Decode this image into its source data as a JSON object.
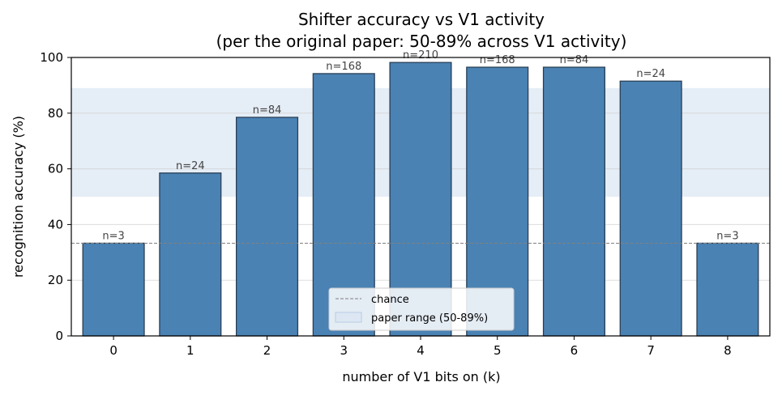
{
  "chart_data": {
    "type": "bar",
    "title": "Shifter accuracy vs V1 activity",
    "subtitle": "(per the original paper: 50-89% across V1 activity)",
    "xlabel": "number of V1 bits on (k)",
    "ylabel": "recognition accuracy (%)",
    "categories": [
      "0",
      "1",
      "2",
      "3",
      "4",
      "5",
      "6",
      "7",
      "8"
    ],
    "values": [
      33.3,
      58.5,
      78.5,
      94.2,
      98.2,
      96.5,
      96.5,
      91.5,
      33.3
    ],
    "bar_labels": [
      "n=3",
      "n=24",
      "n=84",
      "n=168",
      "n=210",
      "n=168",
      "n=84",
      "n=24",
      "n=3"
    ],
    "ylim": [
      0,
      100
    ],
    "yticks": [
      "0",
      "20",
      "40",
      "60",
      "80",
      "100"
    ],
    "chance_level": 33.3,
    "paper_range": [
      50,
      89
    ],
    "grid": "horizontal",
    "legend": {
      "position": "bottom-center",
      "entries": [
        "chance",
        "paper range (50-89%)"
      ]
    },
    "colors": {
      "bar_fill": "#4a82b4",
      "bar_edge": "#2a3f55",
      "band": "#dce7f3",
      "chance_line": "#808080"
    }
  }
}
